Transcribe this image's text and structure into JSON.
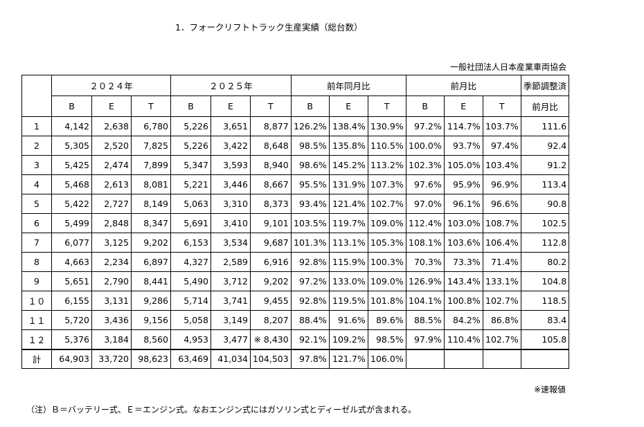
{
  "title": "1．フォークリフトトラック生産実績（総台数）",
  "association": "一般社団法人日本産業車両協会",
  "headers": {
    "group_2024": "２０２４年",
    "group_2025": "２０２５年",
    "group_yoy": "前年同月比",
    "group_mom": "前月比",
    "seasonal_top": "季節調整済",
    "seasonal_bottom": "前月比",
    "sub": [
      "B",
      "E",
      "T",
      "B",
      "E",
      "T",
      "B",
      "E",
      "T",
      "B",
      "E",
      "T"
    ]
  },
  "rows": [
    {
      "label": "1",
      "cells": [
        "4,142",
        "2,638",
        "6,780",
        "5,226",
        "3,651",
        "8,877",
        "126.2%",
        "138.4%",
        "130.9%",
        "97.2%",
        "114.7%",
        "103.7%",
        "111.6"
      ]
    },
    {
      "label": "2",
      "cells": [
        "5,305",
        "2,520",
        "7,825",
        "5,226",
        "3,422",
        "8,648",
        "98.5%",
        "135.8%",
        "110.5%",
        "100.0%",
        "93.7%",
        "97.4%",
        "92.4"
      ]
    },
    {
      "label": "3",
      "cells": [
        "5,425",
        "2,474",
        "7,899",
        "5,347",
        "3,593",
        "8,940",
        "98.6%",
        "145.2%",
        "113.2%",
        "102.3%",
        "105.0%",
        "103.4%",
        "91.2"
      ]
    },
    {
      "label": "4",
      "cells": [
        "5,468",
        "2,613",
        "8,081",
        "5,221",
        "3,446",
        "8,667",
        "95.5%",
        "131.9%",
        "107.3%",
        "97.6%",
        "95.9%",
        "96.9%",
        "113.4"
      ]
    },
    {
      "label": "5",
      "cells": [
        "5,422",
        "2,727",
        "8,149",
        "5,063",
        "3,310",
        "8,373",
        "93.4%",
        "121.4%",
        "102.7%",
        "97.0%",
        "96.1%",
        "96.6%",
        "90.8"
      ]
    },
    {
      "label": "6",
      "cells": [
        "5,499",
        "2,848",
        "8,347",
        "5,691",
        "3,410",
        "9,101",
        "103.5%",
        "119.7%",
        "109.0%",
        "112.4%",
        "103.0%",
        "108.7%",
        "102.5"
      ]
    },
    {
      "label": "7",
      "cells": [
        "6,077",
        "3,125",
        "9,202",
        "6,153",
        "3,534",
        "9,687",
        "101.3%",
        "113.1%",
        "105.3%",
        "108.1%",
        "103.6%",
        "106.4%",
        "112.8"
      ]
    },
    {
      "label": "8",
      "cells": [
        "4,663",
        "2,234",
        "6,897",
        "4,327",
        "2,589",
        "6,916",
        "92.8%",
        "115.9%",
        "100.3%",
        "70.3%",
        "73.3%",
        "71.4%",
        "80.2"
      ]
    },
    {
      "label": "9",
      "cells": [
        "5,651",
        "2,790",
        "8,441",
        "5,490",
        "3,712",
        "9,202",
        "97.2%",
        "133.0%",
        "109.0%",
        "126.9%",
        "143.4%",
        "133.1%",
        "104.8"
      ]
    },
    {
      "label": "１０",
      "cells": [
        "6,155",
        "3,131",
        "9,286",
        "5,714",
        "3,741",
        "9,455",
        "92.8%",
        "119.5%",
        "101.8%",
        "104.1%",
        "100.8%",
        "102.7%",
        "118.5"
      ]
    },
    {
      "label": "１１",
      "cells": [
        "5,720",
        "3,436",
        "9,156",
        "5,058",
        "3,149",
        "8,207",
        "88.4%",
        "91.6%",
        "89.6%",
        "88.5%",
        "84.2%",
        "86.8%",
        "83.4"
      ]
    },
    {
      "label": "１２",
      "cells": [
        "5,376",
        "3,184",
        "8,560",
        "4,953",
        "3,477",
        "※ 8,430",
        "92.1%",
        "109.2%",
        "98.5%",
        "97.9%",
        "110.4%",
        "102.7%",
        "105.8"
      ]
    },
    {
      "label": "計",
      "cells": [
        "64,903",
        "33,720",
        "98,623",
        "63,469",
        "41,034",
        "104,503",
        "97.8%",
        "121.7%",
        "106.0%",
        "",
        "",
        "",
        ""
      ]
    }
  ],
  "footnote": "※速報値",
  "note": "（注）Ｂ＝バッテリー式、Ｅ＝エンジン式。なおエンジン式にはガソリン式とディーゼル式が含まれる。"
}
